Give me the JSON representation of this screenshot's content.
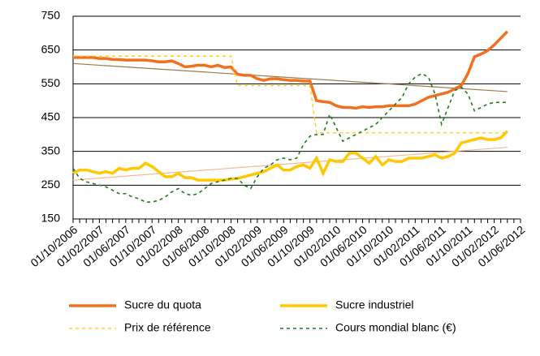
{
  "chart_data": {
    "type": "line",
    "categories": [
      "01/10/2006",
      null,
      null,
      null,
      "01/02/2007",
      null,
      null,
      null,
      "01/06/2007",
      null,
      null,
      null,
      "01/10/2007",
      null,
      null,
      null,
      "01/02/2008",
      null,
      null,
      null,
      "01/06/2008",
      null,
      null,
      null,
      "01/10/2008",
      null,
      null,
      null,
      "01/02/2009",
      null,
      null,
      null,
      "01/06/2009",
      null,
      null,
      null,
      "01/10/2009",
      null,
      null,
      null,
      "01/02/2010",
      null,
      null,
      null,
      "01/06/2010",
      null,
      null,
      null,
      "01/10/2010",
      null,
      null,
      null,
      "01/02/2011",
      null,
      null,
      null,
      "01/06/2011",
      null,
      null,
      null,
      "01/10/2011",
      null,
      null,
      null,
      "01/02/2012",
      null,
      null,
      null,
      "01/06/2012"
    ],
    "ylim": [
      150,
      750
    ],
    "yticks": [
      150,
      250,
      350,
      450,
      550,
      650,
      750
    ],
    "grid": true,
    "series": [
      {
        "name": "Sucre du quota",
        "color": "#f07020",
        "width": 3.5,
        "dash": false,
        "values": [
          628,
          628,
          628,
          628,
          625,
          625,
          622,
          622,
          620,
          620,
          620,
          620,
          618,
          615,
          615,
          618,
          610,
          600,
          602,
          605,
          605,
          600,
          605,
          598,
          600,
          578,
          575,
          575,
          565,
          560,
          565,
          565,
          562,
          560,
          560,
          558,
          558,
          500,
          497,
          495,
          485,
          480,
          480,
          478,
          482,
          480,
          482,
          482,
          485,
          485,
          485,
          485,
          490,
          500,
          510,
          515,
          520,
          525,
          535,
          545,
          580,
          630,
          638,
          648,
          665,
          685,
          705,
          null,
          null
        ]
      },
      {
        "name": "Sucre industriel",
        "color": "#ffc800",
        "width": 3.5,
        "dash": false,
        "values": [
          285,
          295,
          295,
          290,
          285,
          290,
          285,
          300,
          295,
          300,
          300,
          315,
          305,
          290,
          275,
          275,
          285,
          272,
          272,
          265,
          265,
          265,
          265,
          265,
          268,
          270,
          275,
          280,
          285,
          290,
          300,
          310,
          295,
          295,
          305,
          310,
          300,
          330,
          285,
          325,
          320,
          320,
          345,
          345,
          330,
          315,
          335,
          310,
          325,
          320,
          320,
          330,
          330,
          330,
          335,
          340,
          330,
          335,
          345,
          375,
          380,
          385,
          390,
          385,
          385,
          390,
          410,
          null,
          null
        ]
      },
      {
        "name": "Prix de référence",
        "color": "#ffc800",
        "width": 1.3,
        "dash": true,
        "values": [
          632,
          632,
          632,
          632,
          632,
          632,
          632,
          632,
          632,
          632,
          632,
          632,
          632,
          632,
          632,
          632,
          632,
          632,
          632,
          632,
          632,
          632,
          632,
          632,
          632,
          545,
          545,
          545,
          545,
          545,
          545,
          545,
          545,
          545,
          545,
          545,
          545,
          405,
          405,
          405,
          405,
          405,
          405,
          405,
          405,
          405,
          405,
          405,
          405,
          405,
          405,
          405,
          405,
          405,
          405,
          405,
          405,
          405,
          405,
          405,
          405,
          405,
          405,
          405,
          405,
          405,
          405,
          null,
          null
        ]
      },
      {
        "name": "Cours mondial blanc (€)",
        "color": "#207a20",
        "width": 1.6,
        "dash": true,
        "values": [
          300,
          270,
          260,
          255,
          250,
          245,
          235,
          225,
          225,
          215,
          210,
          200,
          200,
          205,
          215,
          230,
          240,
          225,
          220,
          225,
          240,
          255,
          260,
          265,
          270,
          270,
          250,
          240,
          275,
          300,
          310,
          325,
          330,
          325,
          330,
          370,
          395,
          400,
          400,
          460,
          420,
          380,
          390,
          400,
          410,
          420,
          430,
          450,
          470,
          490,
          510,
          550,
          570,
          580,
          570,
          520,
          430,
          480,
          530,
          540,
          520,
          470,
          480,
          490,
          495,
          495,
          495,
          null,
          null
        ]
      }
    ],
    "trendlines": [
      {
        "color": "#9a7a4a",
        "start": 610,
        "end": 527
      },
      {
        "color": "#f5b890",
        "start": 265,
        "end": 362
      }
    ]
  }
}
